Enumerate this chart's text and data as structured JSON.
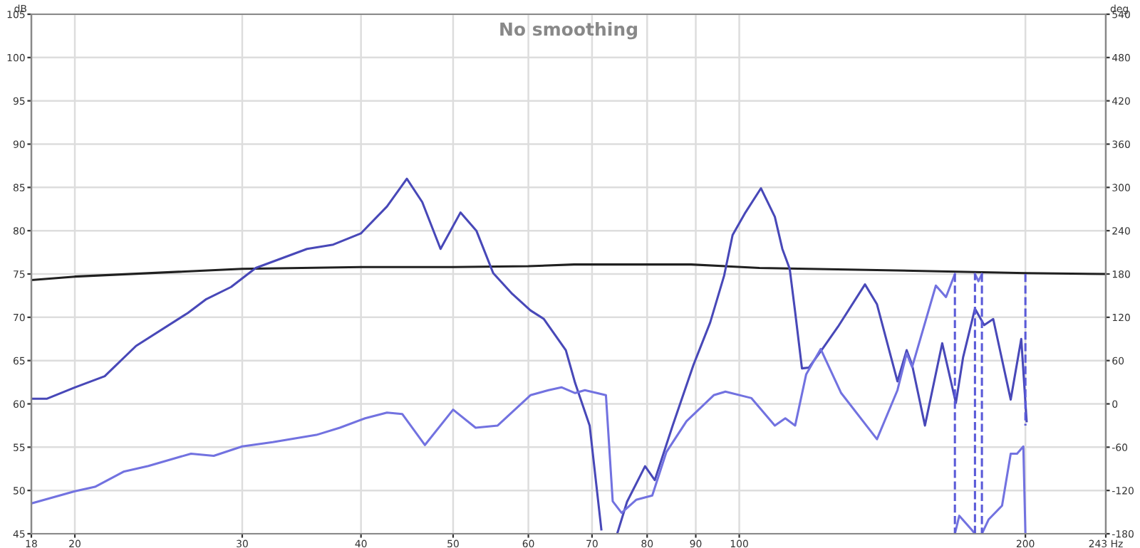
{
  "chart_data": {
    "type": "line",
    "title": "No smoothing",
    "ylabel": "dB",
    "y2label": "deg",
    "log": "x",
    "grid": true,
    "marker": "none",
    "line_style": "solid",
    "xlim": [
      18,
      243
    ],
    "xticks": [
      18,
      20,
      30,
      40,
      50,
      60,
      70,
      80,
      90,
      100,
      200,
      {
        "value": 243,
        "label": "243 Hz"
      }
    ],
    "ylim": [
      45,
      105
    ],
    "yticks": [
      45,
      50,
      55,
      60,
      65,
      70,
      75,
      80,
      85,
      90,
      95,
      100,
      105
    ],
    "y2lim": [
      -180,
      540
    ],
    "y2ticks": [
      -180,
      -120,
      -60,
      0,
      60,
      120,
      180,
      240,
      300,
      360,
      420,
      480,
      540
    ],
    "series": [
      {
        "color": "#202020",
        "x": [
          18,
          20,
          30,
          40,
          50,
          60,
          67,
          89,
          105,
          133,
          200,
          243
        ],
        "values": [
          74.3,
          74.7,
          75.6,
          75.8,
          75.8,
          75.9,
          76.1,
          76.1,
          75.7,
          75.5,
          75.1,
          75.0
        ]
      },
      {
        "color": "#4848b8",
        "x": [
          18,
          18.7,
          20,
          21.5,
          23.2,
          26.3,
          27.5,
          29.2,
          31,
          35.1,
          37.4,
          40,
          42.6,
          44.7,
          46.4,
          48.5,
          50.9,
          52.9,
          55.1,
          57.7,
          60.3,
          62.3,
          65.7,
          67.2,
          69.6,
          71.6,
          73,
          74.4,
          76.2,
          79.6,
          81.5,
          85.1,
          89.5,
          93.2,
          96.4,
          98.4,
          101.5,
          105.4,
          109,
          111,
          113,
          114.5,
          116.4,
          118.4,
          122.6,
          127,
          135.6,
          139.6,
          146.7,
          150,
          152,
          156.8,
          163.5,
          169,
          172,
          177,
          181,
          185,
          193,
          198,
          200.6
        ],
        "values": [
          60.6,
          60.6,
          61.9,
          63.2,
          66.7,
          70.5,
          72.1,
          73.5,
          75.7,
          77.9,
          78.4,
          79.7,
          82.8,
          86.0,
          83.3,
          77.9,
          82.1,
          80.0,
          75.1,
          72.7,
          70.8,
          69.8,
          66.2,
          62.4,
          57.5,
          45.5,
          null,
          45,
          48.7,
          52.8,
          51.2,
          57.5,
          64.5,
          69.4,
          74.8,
          79.5,
          82.1,
          84.9,
          81.6,
          77.9,
          75.6,
          70.6,
          64.1,
          64.2,
          66.5,
          68.9,
          73.8,
          71.5,
          62.6,
          66.2,
          64.5,
          57.5,
          67.0,
          60.1,
          65.4,
          71.0,
          69.1,
          69.8,
          60.5,
          67.5,
          58.0
        ]
      },
      {
        "color": "#7272e0",
        "axis": "y2",
        "x": [
          18,
          20,
          21,
          22.5,
          23.9,
          26.5,
          28,
          30,
          32.3,
          35.9,
          38,
          40.4,
          42.6,
          44.2,
          46.7,
          50,
          52.8,
          55.7,
          60.3,
          63,
          65,
          67.2,
          68.8,
          72.4,
          73.6,
          75.2,
          77.9,
          81,
          83.8,
          88,
          94,
          96.7,
          103,
          109,
          111.8,
          114.5,
          117.6,
          121.8,
          128,
          139.6,
          146.7,
          150,
          152,
          161,
          165,
          168.6
        ],
        "values": [
          -138,
          -121,
          -115,
          -94,
          -86,
          -69,
          -72,
          -59,
          -53,
          -43,
          -33,
          -20,
          -12,
          -14,
          -57,
          -8,
          -33,
          -30,
          12,
          19,
          23,
          15,
          19,
          12,
          -135,
          -151,
          -133,
          -127,
          -67,
          -24,
          12,
          17,
          8,
          -30,
          -20,
          -30,
          41,
          76,
          15,
          -49,
          19,
          70,
          51,
          164,
          148,
          180
        ]
      },
      {
        "color": "#7272e0",
        "axis": "y2",
        "x": [
          168.6,
          170.4,
          175.5,
          177
        ],
        "values": [
          -180,
          -155,
          -174,
          -180
        ]
      },
      {
        "color": "#7272e0",
        "axis": "y2",
        "x": [
          177,
          178.5,
          180
        ],
        "values": [
          180,
          170,
          180
        ]
      },
      {
        "color": "#7272e0",
        "axis": "y2",
        "x": [
          180,
          183,
          189,
          193,
          196,
          199,
          200
        ],
        "values": [
          -180,
          -160,
          -141,
          -69,
          -69,
          -59,
          -180
        ]
      },
      {
        "color": "#5a5ad8",
        "axis": "y2",
        "line_style": "dashed",
        "x": [
          168.6,
          168.6
        ],
        "values": [
          180,
          -180
        ]
      },
      {
        "color": "#5a5ad8",
        "axis": "y2",
        "line_style": "dashed",
        "x": [
          177,
          177
        ],
        "values": [
          -180,
          180
        ]
      },
      {
        "color": "#5a5ad8",
        "axis": "y2",
        "line_style": "dashed",
        "x": [
          180,
          180
        ],
        "values": [
          180,
          -180
        ]
      },
      {
        "color": "#5a5ad8",
        "axis": "y2",
        "line_style": "dashed",
        "x": [
          200,
          200
        ],
        "values": [
          180,
          -30
        ]
      }
    ]
  }
}
